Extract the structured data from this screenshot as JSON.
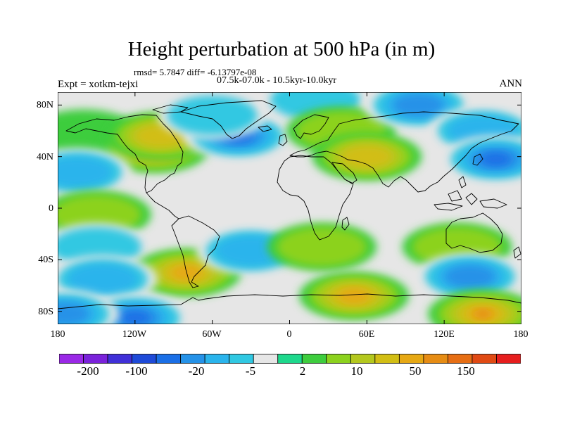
{
  "title": "Height perturbation at 500 hPa (in m)",
  "stats_line": "rmsd= 5.7847 diff= -6.13797e-08",
  "period_line": "07.5k-07.0k - 10.5kyr-10.0kyr",
  "experiment_label": "Expt = xotkm-tejxi",
  "season_label": "ANN",
  "map": {
    "projection": "cylindrical equidistant",
    "lon_range": [
      -180,
      180
    ],
    "lat_range": [
      -90,
      90
    ],
    "lat_tick_labels": [
      "80N",
      "40N",
      "0",
      "40S",
      "80S"
    ],
    "lon_tick_labels": [
      "180",
      "120W",
      "60W",
      "0",
      "60E",
      "120E",
      "180"
    ],
    "neutral_color": "#e6e6e6",
    "coastline_color": "#000000"
  },
  "colorbar": {
    "orientation": "horizontal",
    "colors": [
      "#9a28e6",
      "#7a22da",
      "#4030d8",
      "#1e4ad8",
      "#1a6fe6",
      "#2592e8",
      "#2ab4ec",
      "#30c8e2",
      "#e6e6e6",
      "#1ed88c",
      "#3ecd3e",
      "#8cd21e",
      "#b4c81e",
      "#d2be14",
      "#e6a814",
      "#e68c14",
      "#e66e14",
      "#e04a14",
      "#e61e1e"
    ],
    "labels": [
      "-200",
      "-100",
      "-20",
      "-5",
      "2",
      "10",
      "50",
      "150"
    ]
  },
  "field_anomalies": [
    {
      "lon": -160,
      "lat": 58,
      "level": 0
    },
    {
      "lon": -105,
      "lat": 46,
      "level": 4
    },
    {
      "lon": -100,
      "lat": 56,
      "level": 3
    },
    {
      "lon": -40,
      "lat": 56,
      "level": -4
    },
    {
      "lon": -60,
      "lat": 72,
      "level": -1
    },
    {
      "lon": 20,
      "lat": 84,
      "level": -1
    },
    {
      "lon": 40,
      "lat": 60,
      "level": 1
    },
    {
      "lon": 60,
      "lat": 40,
      "level": 3
    },
    {
      "lon": 100,
      "lat": 80,
      "level": -3
    },
    {
      "lon": 150,
      "lat": 60,
      "level": -2
    },
    {
      "lon": 160,
      "lat": 38,
      "level": -4
    },
    {
      "lon": -165,
      "lat": 28,
      "level": -2
    },
    {
      "lon": -150,
      "lat": -5,
      "level": 1
    },
    {
      "lon": -150,
      "lat": -30,
      "level": -1
    },
    {
      "lon": -80,
      "lat": -50,
      "level": 4
    },
    {
      "lon": -145,
      "lat": -55,
      "level": -2
    },
    {
      "lon": -30,
      "lat": -33,
      "level": -2
    },
    {
      "lon": 25,
      "lat": -30,
      "level": 1
    },
    {
      "lon": 50,
      "lat": -68,
      "level": 4
    },
    {
      "lon": 130,
      "lat": -30,
      "level": 1
    },
    {
      "lon": 140,
      "lat": -53,
      "level": -3
    },
    {
      "lon": 150,
      "lat": -82,
      "level": 5
    },
    {
      "lon": -120,
      "lat": -85,
      "level": -4
    },
    {
      "lon": -175,
      "lat": -82,
      "level": -3
    }
  ]
}
